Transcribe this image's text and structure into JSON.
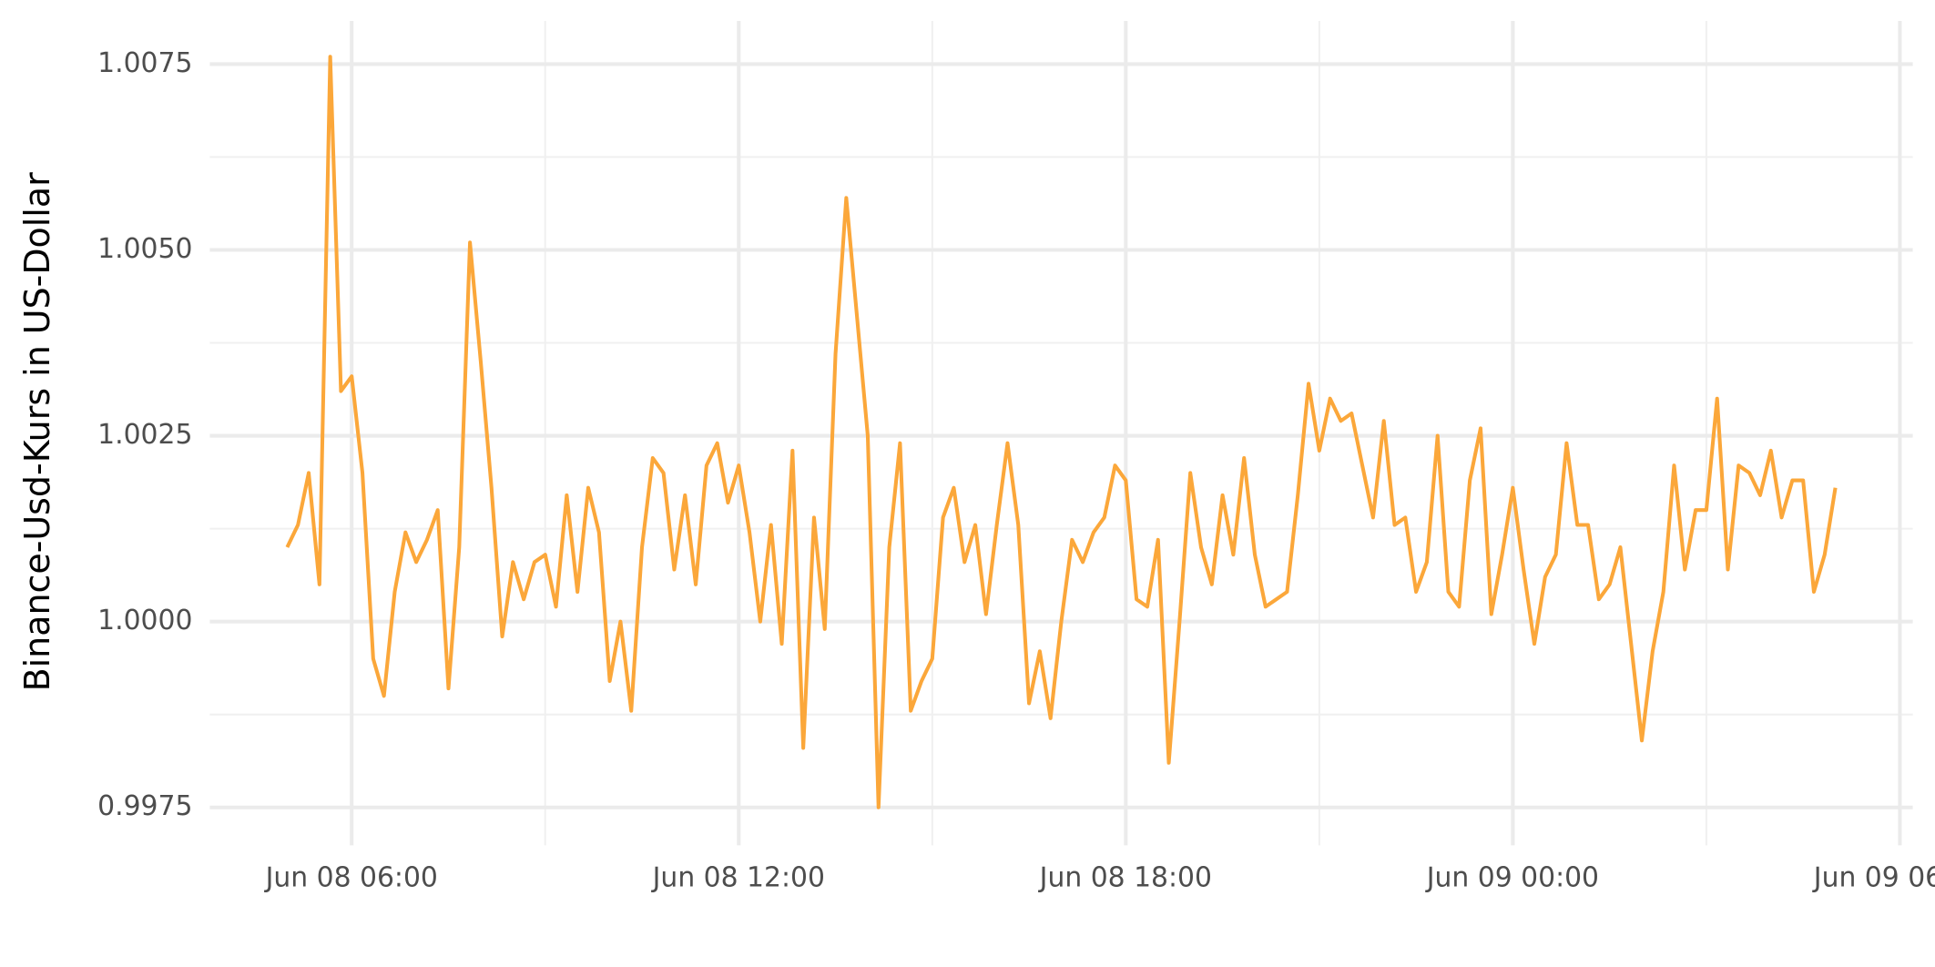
{
  "chart_data": {
    "type": "line",
    "y_label": "Binance-Usd-Kurs in US-Dollar",
    "x": [
      "Jun 08 05:00",
      "Jun 08 05:10",
      "Jun 08 05:20",
      "Jun 08 05:30",
      "Jun 08 05:40",
      "Jun 08 05:50",
      "Jun 08 06:00",
      "Jun 08 06:10",
      "Jun 08 06:20",
      "Jun 08 06:30",
      "Jun 08 06:40",
      "Jun 08 06:50",
      "Jun 08 07:00",
      "Jun 08 07:10",
      "Jun 08 07:20",
      "Jun 08 07:30",
      "Jun 08 07:40",
      "Jun 08 07:50",
      "Jun 08 08:00",
      "Jun 08 08:10",
      "Jun 08 08:20",
      "Jun 08 08:30",
      "Jun 08 08:40",
      "Jun 08 08:50",
      "Jun 08 09:00",
      "Jun 08 09:10",
      "Jun 08 09:20",
      "Jun 08 09:30",
      "Jun 08 09:40",
      "Jun 08 09:50",
      "Jun 08 10:00",
      "Jun 08 10:10",
      "Jun 08 10:20",
      "Jun 08 10:30",
      "Jun 08 10:40",
      "Jun 08 10:50",
      "Jun 08 11:00",
      "Jun 08 11:10",
      "Jun 08 11:20",
      "Jun 08 11:30",
      "Jun 08 11:40",
      "Jun 08 11:50",
      "Jun 08 12:00",
      "Jun 08 12:10",
      "Jun 08 12:20",
      "Jun 08 12:30",
      "Jun 08 12:40",
      "Jun 08 12:50",
      "Jun 08 13:00",
      "Jun 08 13:10",
      "Jun 08 13:20",
      "Jun 08 13:30",
      "Jun 08 13:40",
      "Jun 08 13:50",
      "Jun 08 14:00",
      "Jun 08 14:10",
      "Jun 08 14:20",
      "Jun 08 14:30",
      "Jun 08 14:40",
      "Jun 08 14:50",
      "Jun 08 15:00",
      "Jun 08 15:10",
      "Jun 08 15:20",
      "Jun 08 15:30",
      "Jun 08 15:40",
      "Jun 08 15:50",
      "Jun 08 16:00",
      "Jun 08 16:10",
      "Jun 08 16:20",
      "Jun 08 16:30",
      "Jun 08 16:40",
      "Jun 08 16:50",
      "Jun 08 17:00",
      "Jun 08 17:10",
      "Jun 08 17:20",
      "Jun 08 17:30",
      "Jun 08 17:40",
      "Jun 08 17:50",
      "Jun 08 18:00",
      "Jun 08 18:10",
      "Jun 08 18:20",
      "Jun 08 18:30",
      "Jun 08 18:40",
      "Jun 08 18:50",
      "Jun 08 19:00",
      "Jun 08 19:10",
      "Jun 08 19:20",
      "Jun 08 19:30",
      "Jun 08 19:40",
      "Jun 08 19:50",
      "Jun 08 20:00",
      "Jun 08 20:10",
      "Jun 08 20:20",
      "Jun 08 20:30",
      "Jun 08 20:40",
      "Jun 08 20:50",
      "Jun 08 21:00",
      "Jun 08 21:10",
      "Jun 08 21:20",
      "Jun 08 21:30",
      "Jun 08 21:40",
      "Jun 08 21:50",
      "Jun 08 22:00",
      "Jun 08 22:10",
      "Jun 08 22:20",
      "Jun 08 22:30",
      "Jun 08 22:40",
      "Jun 08 22:50",
      "Jun 08 23:00",
      "Jun 08 23:10",
      "Jun 08 23:20",
      "Jun 08 23:30",
      "Jun 08 23:40",
      "Jun 08 23:50",
      "Jun 09 00:00",
      "Jun 09 00:10",
      "Jun 09 00:20",
      "Jun 09 00:30",
      "Jun 09 00:40",
      "Jun 09 00:50",
      "Jun 09 01:00",
      "Jun 09 01:10",
      "Jun 09 01:20",
      "Jun 09 01:30",
      "Jun 09 01:40",
      "Jun 09 01:50",
      "Jun 09 02:00",
      "Jun 09 02:10",
      "Jun 09 02:20",
      "Jun 09 02:30",
      "Jun 09 02:40",
      "Jun 09 02:50",
      "Jun 09 03:00",
      "Jun 09 03:10",
      "Jun 09 03:20",
      "Jun 09 03:30",
      "Jun 09 03:40",
      "Jun 09 03:50",
      "Jun 09 04:00",
      "Jun 09 04:10",
      "Jun 09 04:20",
      "Jun 09 04:30",
      "Jun 09 04:40",
      "Jun 09 04:50",
      "Jun 09 05:00"
    ],
    "series": [
      {
        "color": "#fba73a",
        "values": [
          1.001,
          1.0013,
          1.002,
          1.0005,
          1.0076,
          1.0031,
          1.0033,
          1.002,
          0.9995,
          0.999,
          1.0004,
          1.0012,
          1.0008,
          1.0011,
          1.0015,
          0.9991,
          1.001,
          1.0051,
          1.0035,
          1.0018,
          0.9998,
          1.0008,
          1.0003,
          1.0008,
          1.0009,
          1.0002,
          1.0017,
          1.0004,
          1.0018,
          1.0012,
          0.9992,
          1.0,
          0.9988,
          1.001,
          1.0022,
          1.002,
          1.0007,
          1.0017,
          1.0005,
          1.0021,
          1.0024,
          1.0016,
          1.0021,
          1.0012,
          1.0,
          1.0013,
          0.9997,
          1.0023,
          0.9983,
          1.0014,
          0.9999,
          1.0036,
          1.0057,
          1.0041,
          1.0025,
          0.9975,
          1.001,
          1.0024,
          0.9988,
          0.9992,
          0.9995,
          1.0014,
          1.0018,
          1.0008,
          1.0013,
          1.0001,
          1.0013,
          1.0024,
          1.0013,
          0.9989,
          0.9996,
          0.9987,
          1.0,
          1.0011,
          1.0008,
          1.0012,
          1.0014,
          1.0021,
          1.0019,
          1.0003,
          1.0002,
          1.0011,
          0.9981,
          1.0,
          1.002,
          1.001,
          1.0005,
          1.0017,
          1.0009,
          1.0022,
          1.0009,
          1.0002,
          1.0003,
          1.0004,
          1.0017,
          1.0032,
          1.0023,
          1.003,
          1.0027,
          1.0028,
          1.0021,
          1.0014,
          1.0027,
          1.0013,
          1.0014,
          1.0004,
          1.0008,
          1.0025,
          1.0004,
          1.0002,
          1.0019,
          1.0026,
          1.0001,
          1.0009,
          1.0018,
          1.0007,
          0.9997,
          1.0006,
          1.0009,
          1.0024,
          1.0013,
          1.0013,
          1.0003,
          1.0005,
          1.001,
          0.9997,
          0.9984,
          0.9996,
          1.0004,
          1.0021,
          1.0007,
          1.0015,
          1.0015,
          1.003,
          1.0007,
          1.0021,
          1.002,
          1.0017,
          1.0023,
          1.0014,
          1.0019,
          1.0019,
          1.0004,
          1.0009,
          1.0018
        ]
      }
    ],
    "xlim": [
      "Jun 08 03:48",
      "Jun 09 06:12"
    ],
    "xticks": [
      "Jun 08 06:00",
      "Jun 08 12:00",
      "Jun 08 18:00",
      "Jun 09 00:00",
      "Jun 09 06:00"
    ],
    "xminorticks": [
      "Jun 08 09:00",
      "Jun 08 15:00",
      "Jun 08 21:00",
      "Jun 09 03:00"
    ],
    "ylim": [
      0.99699,
      1.00808
    ],
    "yticks": [
      0.9975,
      {
        "value": 1,
        "label": "1.0000"
      },
      1.0025,
      {
        "value": 1.005,
        "label": "1.0050"
      },
      1.0075
    ],
    "yminorticks": [
      0.99875,
      1.00125,
      1.00375,
      1.00625
    ],
    "grid": true
  }
}
